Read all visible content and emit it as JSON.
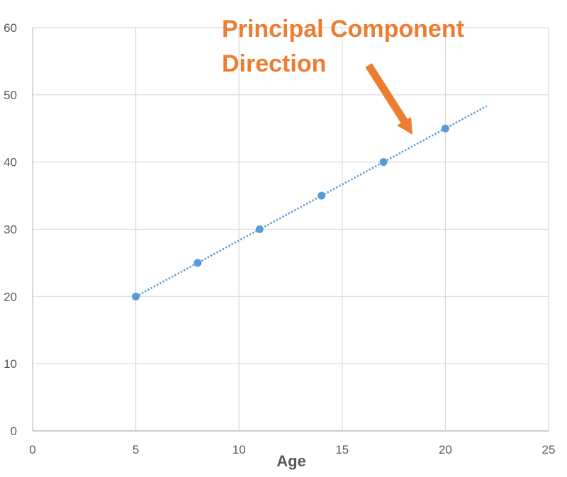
{
  "chart_data": {
    "type": "scatter",
    "title": "",
    "xlabel": "Age",
    "ylabel": "",
    "xlim": [
      0,
      25
    ],
    "ylim": [
      0,
      60
    ],
    "x_ticks": [
      0,
      5,
      10,
      15,
      20,
      25
    ],
    "y_ticks": [
      0,
      10,
      20,
      30,
      40,
      50,
      60
    ],
    "grid": true,
    "legend": "none",
    "series": [
      {
        "color": "#5B9BD5",
        "points": [
          {
            "x": 5,
            "y": 20
          },
          {
            "x": 8,
            "y": 25
          },
          {
            "x": 11,
            "y": 30
          },
          {
            "x": 14,
            "y": 35
          },
          {
            "x": 17,
            "y": 40
          },
          {
            "x": 20,
            "y": 45
          }
        ]
      }
    ],
    "trendline": {
      "style": "dotted",
      "color": "#5B9BD5",
      "x_start": 5,
      "x_end": 22,
      "slope": 1.6667,
      "intercept": 11.6667
    },
    "annotation": {
      "lines": [
        "Principal Component",
        "Direction"
      ],
      "color": "#ED7D31",
      "arrow_color": "#ED7D31"
    }
  }
}
